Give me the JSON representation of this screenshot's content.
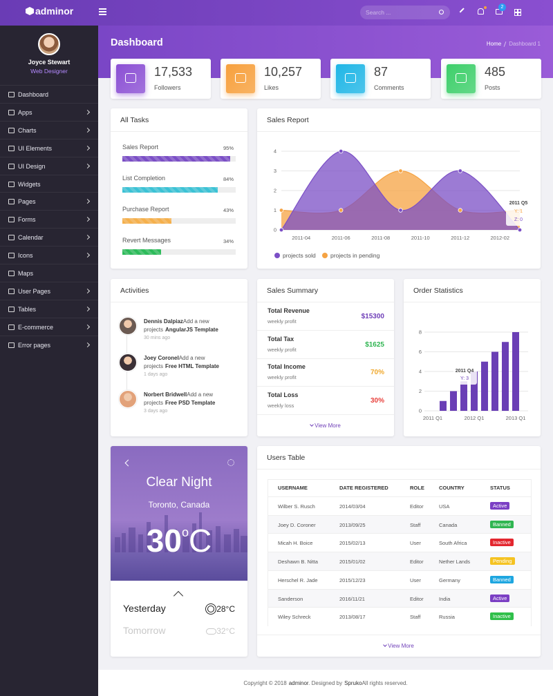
{
  "header": {
    "brand": "adminor",
    "search_placeholder": "Search ...",
    "message_badge": "2"
  },
  "sidebar": {
    "user": {
      "name": "Joyce Stewart",
      "role": "Web Designer"
    },
    "menu": [
      {
        "label": "Dashboard",
        "submenu": false
      },
      {
        "label": "Apps",
        "submenu": true
      },
      {
        "label": "Charts",
        "submenu": true
      },
      {
        "label": "UI Elements",
        "submenu": true
      },
      {
        "label": "UI Design",
        "submenu": true
      },
      {
        "label": "Widgets",
        "submenu": false
      },
      {
        "label": "Pages",
        "submenu": true
      },
      {
        "label": "Forms",
        "submenu": true
      },
      {
        "label": "Calendar",
        "submenu": true
      },
      {
        "label": "Icons",
        "submenu": true
      },
      {
        "label": "Maps",
        "submenu": false
      },
      {
        "label": "User Pages",
        "submenu": true
      },
      {
        "label": "Tables",
        "submenu": true
      },
      {
        "label": "E-commerce",
        "submenu": true
      },
      {
        "label": "Error pages",
        "submenu": true
      }
    ]
  },
  "page": {
    "title": "Dashboard",
    "breadcrumb": [
      "Home",
      "Dashboard 1"
    ]
  },
  "stats": [
    {
      "value": "17,533",
      "label": "Followers",
      "color": "#8b4fd4"
    },
    {
      "value": "10,257",
      "label": "Likes",
      "color": "#f7a03c"
    },
    {
      "value": "87",
      "label": "Comments",
      "color": "#1fb6e6"
    },
    {
      "value": "485",
      "label": "Posts",
      "color": "#3dcf6a"
    }
  ],
  "tasks": {
    "title": "All Tasks",
    "items": [
      {
        "name": "Sales Report",
        "value": 95,
        "value_label": "95%",
        "color": "#7b4fc6"
      },
      {
        "name": "List Completion",
        "value": 84,
        "value_label": "84%",
        "color": "#3cc2d5"
      },
      {
        "name": "Purchase Report",
        "value": 43,
        "value_label": "43%",
        "color": "#f5b04c"
      },
      {
        "name": "Revert Messages",
        "value": 34,
        "value_label": "34%",
        "color": "#2dbb5a"
      }
    ]
  },
  "chart_data": [
    {
      "type": "area",
      "title": "Sales Report",
      "x": [
        "2011-03",
        "2011-06",
        "2011-09",
        "2011-12",
        "2012-03"
      ],
      "xlim": [
        "2011-03",
        "2012-03"
      ],
      "xticks": [
        "2011-04",
        "2011-06",
        "2011-08",
        "2011-10",
        "2011-12",
        "2012-02"
      ],
      "ylim": [
        0,
        4
      ],
      "yticks": [
        0,
        1,
        2,
        3,
        4
      ],
      "grid": true,
      "series": [
        {
          "name": "projects sold",
          "color": "#7b4fc6",
          "values": [
            0,
            4,
            1,
            3,
            0
          ]
        },
        {
          "name": "projects in pending",
          "color": "#f5a343",
          "values": [
            1,
            1,
            3,
            1,
            1
          ]
        }
      ],
      "annotations": [
        "2011 Q5",
        "Y: 1",
        "Z: 0"
      ]
    },
    {
      "type": "bar",
      "title": "Order Statistics",
      "categories": [
        "2011 Q1",
        null,
        null,
        null,
        "2012 Q1",
        null,
        null,
        null,
        "2013 Q1"
      ],
      "values": [
        0,
        1,
        2,
        3,
        4,
        5,
        6,
        7,
        8
      ],
      "color": "#6a3fb5",
      "ylim": [
        0,
        8
      ],
      "yticks": [
        0,
        2,
        4,
        6,
        8
      ],
      "grid": true,
      "annotations": [
        "2011 Q4",
        "Y: 3"
      ]
    }
  ],
  "activities": {
    "title": "Activities",
    "items": [
      {
        "name": "Dennis Dalpiaz",
        "action": "Add a new projects",
        "project": "AngularJS Template",
        "time": "30 mins ago"
      },
      {
        "name": "Joey Coronel",
        "action": "Add a new projects",
        "project": "Free HTML Template",
        "time": "1 days ago"
      },
      {
        "name": "Norbert Bridwell",
        "action": "Add a new projects",
        "project": "Free PSD Template",
        "time": "3 days ago"
      }
    ]
  },
  "sales_summary": {
    "title": "Sales Summary",
    "items": [
      {
        "label": "Total Revenue",
        "sub": "weekly profit",
        "value": "$15300",
        "color": "#6f3fb8"
      },
      {
        "label": "Total Tax",
        "sub": "weekly profit",
        "value": "$1625",
        "color": "#2fb551"
      },
      {
        "label": "Total Income",
        "sub": "weekly profit",
        "value": "70%",
        "color": "#f0a92e"
      },
      {
        "label": "Total Loss",
        "sub": "weekly loss",
        "value": "30%",
        "color": "#e8413c"
      }
    ],
    "more": "View More"
  },
  "weather": {
    "condition": "Clear Night",
    "location": "Toronto, Canada",
    "temperature": "30",
    "degree": "o",
    "unit": "C",
    "forecast": [
      {
        "day": "Yesterday",
        "temp": "28°C"
      },
      {
        "day": "Tomorrow",
        "temp": "32°C"
      }
    ]
  },
  "users_table": {
    "title": "Users Table",
    "columns": [
      "USERNAME",
      "DATE REGISTERED",
      "ROLE",
      "COUNTRY",
      "STATUS"
    ],
    "rows": [
      [
        "Wilber S. Rusch",
        "2014/03/04",
        "Editor",
        "USA",
        "Active"
      ],
      [
        "Joey D. Coroner",
        "2013/09/25",
        "Staff",
        "Canada",
        "Banned"
      ],
      [
        "Micah H. Boice",
        "2015/02/13",
        "User",
        "South Africa",
        "Inactive"
      ],
      [
        "Deshawn B. Nitta",
        "2015/01/02",
        "Editor",
        "Nether Lands",
        "Pending"
      ],
      [
        "Herschel R. Jade",
        "2015/12/23",
        "User",
        "Germany",
        "Banned"
      ],
      [
        "Sanderson",
        "2016/11/21",
        "Editor",
        "India",
        "Active"
      ],
      [
        "Wiley Schreck",
        "2013/08/17",
        "Staff",
        "Russia",
        "Inactive"
      ]
    ],
    "status_colors": [
      "#7b3fc4",
      "#2fb551",
      "#e3262e",
      "#f5c322",
      "#1ea6e0",
      "#7b3fc4",
      "#2fbf4a"
    ],
    "more": "View More"
  },
  "footer": {
    "copyright": "Copyright © 2018",
    "brand": "adminor",
    "designed": ". Designed by",
    "designer": "Spruko",
    "rights": "All rights reserved."
  }
}
